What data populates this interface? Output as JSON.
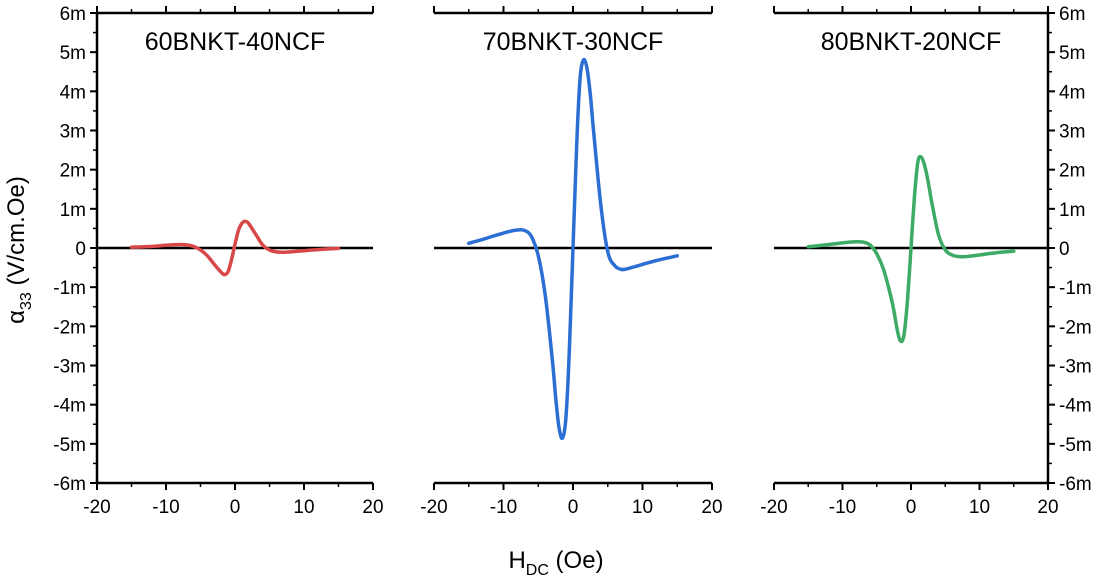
{
  "chart_data": {
    "type": "line",
    "xlabel": "H",
    "xlabel_sub": "DC",
    "xlabel_unit": " (Oe)",
    "ylabel": "α",
    "ylabel_sub": "33",
    "ylabel_unit": " (V/cm.Oe)",
    "xlim": [
      -20,
      20
    ],
    "ylim": [
      -6,
      6
    ],
    "x_ticks": [
      "-20",
      "-10",
      "0",
      "10",
      "20"
    ],
    "y_ticks": [
      "-6m",
      "-5m",
      "-4m",
      "-3m",
      "-2m",
      "-1m",
      "0",
      "1m",
      "2m",
      "3m",
      "4m",
      "5m",
      "6m"
    ],
    "y_unit_note": "m",
    "grid": false,
    "zero_line": true,
    "panels": [
      {
        "title": "60BNKT-40NCF",
        "color": "#d94848",
        "x": [
          -15,
          -12,
          -10,
          -8,
          -7,
          -6,
          -5,
          -4,
          -3,
          -2,
          -1.5,
          -1,
          -0.5,
          0,
          0.5,
          1,
          1.5,
          2,
          3,
          4,
          5,
          6,
          7,
          8,
          10,
          12,
          15
        ],
        "y": [
          0.02,
          0.04,
          0.07,
          0.09,
          0.08,
          0.04,
          -0.05,
          -0.2,
          -0.42,
          -0.62,
          -0.68,
          -0.6,
          -0.3,
          0.1,
          0.45,
          0.63,
          0.68,
          0.62,
          0.35,
          0.08,
          -0.05,
          -0.1,
          -0.11,
          -0.1,
          -0.07,
          -0.04,
          -0.01
        ]
      },
      {
        "title": "70BNKT-30NCF",
        "color": "#2b6fd4",
        "x": [
          -15,
          -13,
          -11,
          -9,
          -8,
          -7,
          -6,
          -5,
          -4,
          -3,
          -2.5,
          -2,
          -1.5,
          -1,
          -0.5,
          0,
          0.5,
          1,
          1.5,
          2,
          2.5,
          3,
          4,
          5,
          6,
          7,
          8,
          10,
          12,
          15
        ],
        "y": [
          0.12,
          0.22,
          0.33,
          0.43,
          0.46,
          0.45,
          0.3,
          -0.2,
          -1.2,
          -2.8,
          -3.8,
          -4.6,
          -4.85,
          -4.3,
          -2.5,
          0.0,
          2.5,
          4.3,
          4.8,
          4.6,
          3.9,
          2.9,
          1.1,
          -0.1,
          -0.45,
          -0.55,
          -0.52,
          -0.42,
          -0.32,
          -0.2
        ]
      },
      {
        "title": "80BNKT-20NCF",
        "color": "#3daa66",
        "x": [
          -15,
          -13,
          -11,
          -9,
          -8,
          -7,
          -6,
          -5,
          -4,
          -3,
          -2.5,
          -2,
          -1.5,
          -1,
          -0.5,
          0,
          0.5,
          1,
          1.5,
          2,
          2.5,
          3,
          4,
          5,
          6,
          7,
          8,
          10,
          12,
          15
        ],
        "y": [
          0.03,
          0.07,
          0.11,
          0.15,
          0.16,
          0.15,
          0.08,
          -0.15,
          -0.55,
          -1.2,
          -1.6,
          -2.1,
          -2.38,
          -2.2,
          -1.3,
          0.0,
          1.3,
          2.2,
          2.32,
          2.1,
          1.7,
          1.2,
          0.35,
          -0.05,
          -0.18,
          -0.22,
          -0.22,
          -0.18,
          -0.13,
          -0.08
        ]
      }
    ]
  }
}
